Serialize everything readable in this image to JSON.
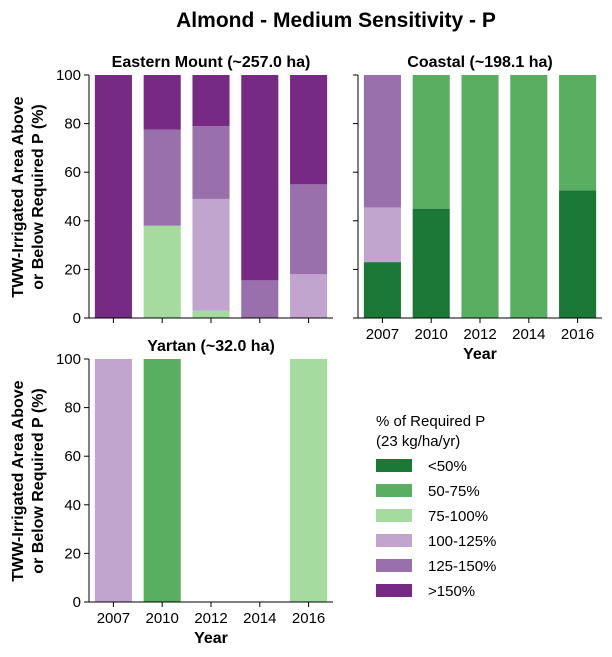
{
  "title": "Almond - Medium Sensitivity - P",
  "y_axis_label_line1": "TWW-Irrigated Area Above",
  "y_axis_label_line2": "or Below Required P (%)",
  "x_axis_label": "Year",
  "legend": {
    "title_line1": "% of Required P",
    "title_line2": "(23 kg/ha/yr)",
    "categories": [
      {
        "label": "<50%",
        "color": "#1b7837"
      },
      {
        "label": "50-75%",
        "color": "#5aae61"
      },
      {
        "label": "75-100%",
        "color": "#a6dba0"
      },
      {
        "label": "100-125%",
        "color": "#c2a5cf"
      },
      {
        "label": "125-150%",
        "color": "#9970ab"
      },
      {
        "label": ">150%",
        "color": "#762a83"
      }
    ]
  },
  "chart_data": [
    {
      "type": "bar",
      "stacked": true,
      "title": "Eastern Mount (~257.0 ha)",
      "categories": [
        "2007",
        "2010",
        "2012",
        "2014",
        "2016"
      ],
      "ylim": [
        0,
        100
      ],
      "yticks": [
        0,
        20,
        40,
        60,
        80,
        100
      ],
      "show_x_ticklabels": false,
      "series": [
        {
          "name": "<50%",
          "values": [
            0,
            0,
            0,
            0,
            0
          ]
        },
        {
          "name": "50-75%",
          "values": [
            0,
            0,
            0,
            0,
            0
          ]
        },
        {
          "name": "75-100%",
          "values": [
            0,
            38,
            3,
            0,
            0
          ]
        },
        {
          "name": "100-125%",
          "values": [
            0,
            0,
            46,
            0,
            18
          ]
        },
        {
          "name": "125-150%",
          "values": [
            0,
            39.5,
            30,
            15.5,
            37
          ]
        },
        {
          "name": ">150%",
          "values": [
            100,
            22.5,
            21,
            84.5,
            45
          ]
        }
      ]
    },
    {
      "type": "bar",
      "stacked": true,
      "title": "Coastal (~198.1 ha)",
      "categories": [
        "2007",
        "2010",
        "2012",
        "2014",
        "2016"
      ],
      "ylim": [
        0,
        100
      ],
      "yticks": [
        0,
        20,
        40,
        60,
        80,
        100
      ],
      "show_x_ticklabels": true,
      "series": [
        {
          "name": "<50%",
          "values": [
            23,
            45,
            0,
            0,
            52.5
          ]
        },
        {
          "name": "50-75%",
          "values": [
            0,
            55,
            100,
            100,
            47.5
          ]
        },
        {
          "name": "75-100%",
          "values": [
            0,
            0,
            0,
            0,
            0
          ]
        },
        {
          "name": "100-125%",
          "values": [
            22.5,
            0,
            0,
            0,
            0
          ]
        },
        {
          "name": "125-150%",
          "values": [
            54.5,
            0,
            0,
            0,
            0
          ]
        },
        {
          "name": ">150%",
          "values": [
            0,
            0,
            0,
            0,
            0
          ]
        }
      ]
    },
    {
      "type": "bar",
      "stacked": true,
      "title": "Yartan (~32.0 ha)",
      "categories": [
        "2007",
        "2010",
        "2012",
        "2014",
        "2016"
      ],
      "ylim": [
        0,
        100
      ],
      "yticks": [
        0,
        20,
        40,
        60,
        80,
        100
      ],
      "show_x_ticklabels": true,
      "series": [
        {
          "name": "<50%",
          "values": [
            0,
            0,
            0,
            0,
            0
          ]
        },
        {
          "name": "50-75%",
          "values": [
            0,
            100,
            0,
            0,
            0
          ]
        },
        {
          "name": "75-100%",
          "values": [
            0,
            0,
            0,
            0,
            100
          ]
        },
        {
          "name": "100-125%",
          "values": [
            100,
            0,
            0,
            0,
            0
          ]
        },
        {
          "name": "125-150%",
          "values": [
            0,
            0,
            0,
            0,
            0
          ]
        },
        {
          "name": ">150%",
          "values": [
            0,
            0,
            0,
            0,
            0
          ]
        }
      ]
    }
  ]
}
